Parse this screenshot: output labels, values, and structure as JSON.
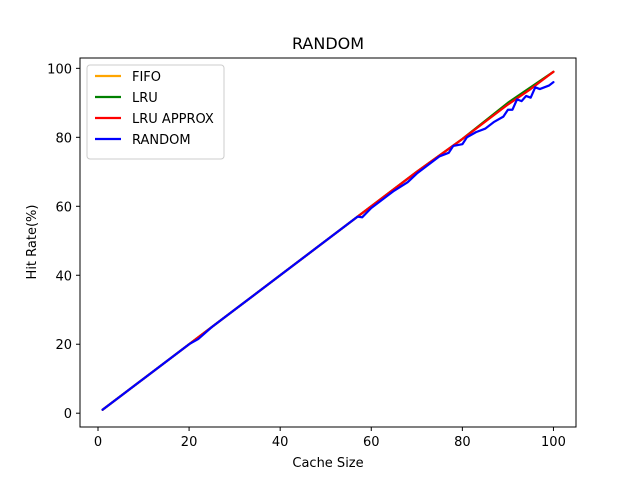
{
  "chart_data": {
    "type": "line",
    "title": "RANDOM",
    "xlabel": "Cache Size",
    "ylabel": "Hit Rate(%)",
    "xlim": [
      -3.95,
      104.95
    ],
    "ylim": [
      -4.0,
      103.0
    ],
    "xticks": [
      0,
      20,
      40,
      60,
      80,
      100
    ],
    "yticks": [
      0,
      20,
      40,
      60,
      80,
      100
    ],
    "grid": false,
    "legend_position": "top-left",
    "series": [
      {
        "name": "FIFO",
        "color": "#FFA500",
        "x": [
          1,
          10,
          20,
          30,
          40,
          50,
          60,
          70,
          80,
          90,
          100
        ],
        "y": [
          1,
          10,
          20,
          30,
          40,
          50,
          60,
          70,
          79.5,
          90,
          99
        ]
      },
      {
        "name": "LRU",
        "color": "#008000",
        "x": [
          1,
          10,
          20,
          30,
          40,
          50,
          60,
          70,
          80,
          90,
          100
        ],
        "y": [
          1,
          10,
          20,
          30,
          40,
          50,
          60,
          70,
          79.5,
          90,
          99
        ]
      },
      {
        "name": "LRU APPROX",
        "color": "#FF0000",
        "x": [
          1,
          10,
          20,
          30,
          40,
          50,
          60,
          70,
          80,
          85,
          90,
          95,
          100
        ],
        "y": [
          1,
          10,
          20,
          30,
          40,
          50,
          60,
          70,
          79.5,
          84.5,
          89.5,
          94,
          99
        ]
      },
      {
        "name": "RANDOM",
        "color": "#0000FF",
        "x": [
          1,
          5,
          10,
          15,
          20,
          22,
          25,
          30,
          35,
          37,
          40,
          42,
          45,
          48,
          50,
          55,
          57,
          58,
          60,
          65,
          68,
          70,
          75,
          77,
          78,
          80,
          81,
          83,
          85,
          87,
          89,
          90,
          91,
          92,
          93,
          94,
          95,
          96,
          97,
          98,
          99,
          100
        ],
        "y": [
          1,
          5,
          10,
          15,
          20,
          21.5,
          25,
          30,
          35,
          37,
          40,
          42,
          45,
          48,
          50,
          55,
          57,
          56.8,
          59.5,
          64.5,
          67,
          69.5,
          74.5,
          75.5,
          77.5,
          78,
          80,
          81.5,
          82.5,
          84.5,
          86,
          88,
          88,
          91,
          90.5,
          92,
          91.5,
          94.5,
          94,
          94.5,
          95,
          96
        ]
      }
    ]
  }
}
